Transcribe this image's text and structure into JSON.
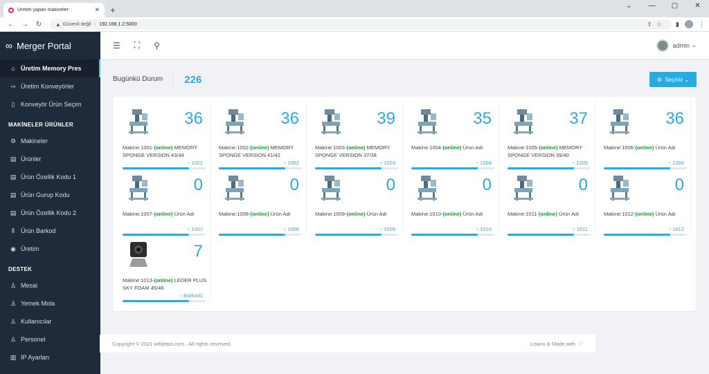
{
  "browser": {
    "tab_title": "Üretim yapan makineler",
    "security": "Güvenli değil",
    "url": "192.168.1.2:5000"
  },
  "sidebar": {
    "brand": "Merger Portal",
    "items_top": [
      {
        "label": "Üretim Memory Pres",
        "icon": "home-icon",
        "active": true
      },
      {
        "label": "Üretim Konveyörler",
        "icon": "arrow-right-icon"
      },
      {
        "label": "Konveyör Ürün Seçim",
        "icon": "square-icon"
      }
    ],
    "section_products": "MAKİNELER ÜRÜNLER",
    "items_products": [
      {
        "label": "Makineler",
        "icon": "gear-icon"
      },
      {
        "label": "Ürünler",
        "icon": "book-icon"
      },
      {
        "label": "Ürün Özellik Kodu 1",
        "icon": "book-icon"
      },
      {
        "label": "Ürün Gurup Kodu",
        "icon": "book-icon"
      },
      {
        "label": "Ürün Özellik Kodu 2",
        "icon": "book-icon"
      },
      {
        "label": "Ürün Barkod",
        "icon": "barcode-icon"
      },
      {
        "label": "Üretim",
        "icon": "compass-icon"
      }
    ],
    "section_support": "DESTEK",
    "items_support": [
      {
        "label": "Mesai",
        "icon": "user-icon"
      },
      {
        "label": "Yemek Mola",
        "icon": "user-icon"
      },
      {
        "label": "Kullanıcılar",
        "icon": "user-icon"
      },
      {
        "label": "Personel",
        "icon": "user-icon"
      },
      {
        "label": "IP Ayarları",
        "icon": "map-icon"
      }
    ]
  },
  "header": {
    "user": "admin"
  },
  "status": {
    "label": "Bugünkü Durum",
    "value": "226",
    "select_label": "Seçiniz"
  },
  "machines": [
    {
      "makine": "Makine:1001-",
      "status": "(online)",
      "product": "MEMORY SPONGE VERSION 43/44",
      "count": "36",
      "code": "↑ 1001",
      "progress": 0.8
    },
    {
      "makine": "Makine:1002-",
      "status": "(online)",
      "product": "MEMORY SPONGE VERSION 41/42",
      "count": "36",
      "code": "↑ 1002",
      "progress": 0.8
    },
    {
      "makine": "Makine:1003-",
      "status": "(online)",
      "product": "MEMORY SPONGE VERSION 37/38",
      "count": "39",
      "code": "↑ 1003",
      "progress": 0.8
    },
    {
      "makine": "Makine:1004-",
      "status": "(online)",
      "product": "Ürün Adı",
      "count": "35",
      "code": "↑ 1004",
      "progress": 0.8
    },
    {
      "makine": "Makine:1005-",
      "status": "(online)",
      "product": "MEMORY SPONGE VERSION 39/40",
      "count": "37",
      "code": "↑ 1005",
      "progress": 0.8
    },
    {
      "makine": "Makine:1006-",
      "status": "(online)",
      "product": "Ürün Adı",
      "count": "36",
      "code": "↑ 1006",
      "progress": 0.8
    },
    {
      "makine": "Makine:1007-",
      "status": "(online)",
      "product": "Ürün Adı",
      "count": "0",
      "code": "↑ 1007",
      "progress": 0.8
    },
    {
      "makine": "Makine:1008-",
      "status": "(online)",
      "product": "Ürün Adı",
      "count": "0",
      "code": "↑ 1008",
      "progress": 0.8
    },
    {
      "makine": "Makine:1009-",
      "status": "(online)",
      "product": "Ürün Adı",
      "count": "0",
      "code": "↑ 1009",
      "progress": 0.8
    },
    {
      "makine": "Makine:1010-",
      "status": "(online)",
      "product": "Ürün Adı",
      "count": "0",
      "code": "↑ 1010",
      "progress": 0.8
    },
    {
      "makine": "Makine:1011-",
      "status": "(online)",
      "product": "Ürün Adı",
      "count": "0",
      "code": "↑ 1011",
      "progress": 0.8
    },
    {
      "makine": "Makine:1012-",
      "status": "(online)",
      "product": "Ürün Adı",
      "count": "0",
      "code": "↑ 1012",
      "progress": 0.8
    },
    {
      "makine": "Makine:1013-",
      "status": "(online)",
      "product": "LEDER PLUS SKY FOAM 45/46",
      "count": "7",
      "code": "↑ Barkod1",
      "progress": 0.8,
      "kind": "scanner"
    }
  ],
  "footer": {
    "copyright": "Copyright © 2021 wifidepo.com . All rights reserved.",
    "right": "Lisans & Made with"
  }
}
